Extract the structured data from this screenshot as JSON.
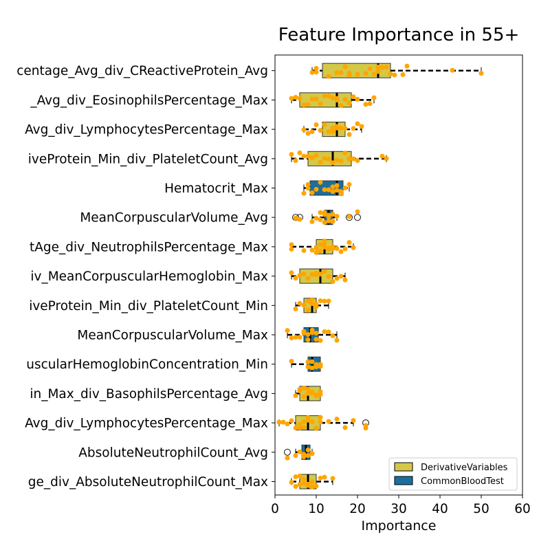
{
  "chart_data": {
    "type": "box",
    "orientation": "horizontal",
    "title": "Feature Importance in 55+",
    "xlabel": "Importance",
    "ylabel": "",
    "xlim": [
      0,
      60
    ],
    "xticks": [
      0,
      10,
      20,
      30,
      40,
      50,
      60
    ],
    "grid": false,
    "legend_position": "lower-right",
    "legend": [
      {
        "name": "DerivativeVariables",
        "color": "#d4c848"
      },
      {
        "name": "CommonBloodTest",
        "color": "#1a6f9e"
      }
    ],
    "point_color": "#ffa500",
    "categories": [
      {
        "label": "centage_Avg_div_CReactiveProtein_Avg",
        "group": "DerivativeVariables",
        "whislo": 9,
        "q1": 11.5,
        "median": 25,
        "q3": 28,
        "whishi": 50,
        "fliers": [],
        "points": [
          9,
          10,
          10,
          13,
          15,
          16,
          17,
          18,
          18,
          20,
          22,
          23,
          24,
          25,
          25,
          26,
          27,
          28,
          29,
          31,
          32,
          43,
          50
        ]
      },
      {
        "label": "_Avg_div_EosinophilsPercentage_Max",
        "group": "DerivativeVariables",
        "whislo": 4,
        "q1": 6,
        "median": 15,
        "q3": 18.5,
        "whishi": 24,
        "fliers": [],
        "points": [
          4,
          5,
          6,
          7,
          8,
          9,
          10,
          11,
          12,
          13,
          14,
          15,
          15,
          16,
          17,
          18,
          19,
          20,
          22,
          23,
          24
        ]
      },
      {
        "label": "Avg_div_LymphocytesPercentage_Max",
        "group": "DerivativeVariables",
        "whislo": 7,
        "q1": 11.5,
        "median": 15,
        "q3": 17,
        "whishi": 21,
        "fliers": [],
        "points": [
          7,
          8,
          9,
          10,
          11,
          12,
          13,
          14,
          14,
          15,
          15,
          16,
          17,
          18,
          19,
          20,
          21
        ]
      },
      {
        "label": "iveProtein_Min_div_PlateletCount_Avg",
        "group": "DerivativeVariables",
        "whislo": 4,
        "q1": 8,
        "median": 14,
        "q3": 18.5,
        "whishi": 27,
        "fliers": [],
        "points": [
          4,
          5,
          6,
          7,
          8,
          9,
          10,
          11,
          12,
          13,
          14,
          15,
          16,
          17,
          18,
          18,
          19,
          20,
          26,
          27
        ]
      },
      {
        "label": "Hematocrit_Max",
        "group": "CommonBloodTest",
        "whislo": 7,
        "q1": 8.5,
        "median": 15,
        "q3": 16.5,
        "whishi": 18,
        "fliers": [],
        "points": [
          7,
          8,
          8,
          9,
          10,
          11,
          12,
          13,
          14,
          14,
          15,
          15,
          16,
          16,
          17,
          18
        ]
      },
      {
        "label": "MeanCorpuscularVolume_Avg",
        "group": "CommonBloodTest",
        "whislo": 9,
        "q1": 12,
        "median": 13,
        "q3": 14,
        "whishi": 15,
        "fliers": [
          5,
          6,
          18,
          20
        ],
        "points": [
          5,
          6,
          9,
          10,
          11,
          11,
          12,
          12,
          12,
          13,
          13,
          13,
          14,
          14,
          14,
          15,
          18,
          20
        ]
      },
      {
        "label": "tAge_div_NeutrophilsPercentage_Max",
        "group": "DerivativeVariables",
        "whislo": 4,
        "q1": 10,
        "median": 12,
        "q3": 14,
        "whishi": 19,
        "fliers": [],
        "points": [
          4,
          4,
          7,
          9,
          10,
          10,
          11,
          11,
          12,
          12,
          12,
          13,
          13,
          14,
          14,
          15,
          16,
          17,
          18,
          19
        ]
      },
      {
        "label": "iv_MeanCorpuscularHemoglobin_Max",
        "group": "DerivativeVariables",
        "whislo": 4,
        "q1": 6,
        "median": 11,
        "q3": 14,
        "whishi": 17,
        "fliers": [],
        "points": [
          4,
          5,
          6,
          7,
          8,
          9,
          10,
          10,
          11,
          12,
          13,
          14,
          15,
          16,
          17
        ]
      },
      {
        "label": "iveProtein_Min_div_PlateletCount_Min",
        "group": "DerivativeVariables",
        "whislo": 5,
        "q1": 7,
        "median": 9,
        "q3": 10,
        "whishi": 13,
        "fliers": [],
        "points": [
          5,
          6,
          7,
          7,
          8,
          8,
          9,
          9,
          10,
          10,
          11,
          12,
          13
        ]
      },
      {
        "label": "MeanCorpuscularVolume_Max",
        "group": "CommonBloodTest",
        "whislo": 3,
        "q1": 7,
        "median": 8.5,
        "q3": 10.5,
        "whishi": 15,
        "fliers": [],
        "points": [
          3,
          4,
          5,
          6,
          7,
          7,
          8,
          8,
          9,
          9,
          10,
          10,
          11,
          12,
          13,
          14,
          15
        ]
      },
      {
        "label": "uscularHemoglobinConcentration_Min",
        "group": "CommonBloodTest",
        "whislo": 4,
        "q1": 8,
        "median": 9,
        "q3": 11,
        "whishi": 11,
        "fliers": [],
        "points": [
          4,
          8,
          8,
          9,
          9,
          10,
          10,
          11,
          11
        ]
      },
      {
        "label": "in_Max_div_BasophilsPercentage_Avg",
        "group": "DerivativeVariables",
        "whislo": 5,
        "q1": 6,
        "median": 8,
        "q3": 11,
        "whishi": 11,
        "fliers": [],
        "points": [
          5,
          6,
          6,
          7,
          7,
          8,
          8,
          9,
          9,
          10,
          10,
          11,
          11
        ]
      },
      {
        "label": "Avg_div_LymphocytesPercentage_Max",
        "group": "DerivativeVariables",
        "whislo": 1,
        "q1": 5,
        "median": 8,
        "q3": 11,
        "whishi": 19,
        "fliers": [
          22
        ],
        "points": [
          1,
          2,
          3,
          4,
          5,
          6,
          6,
          7,
          7,
          8,
          8,
          9,
          9,
          10,
          10,
          11,
          11,
          13,
          15,
          17,
          19,
          22,
          22
        ]
      },
      {
        "label": "AbsoluteNeutrophilCount_Avg",
        "group": "CommonBloodTest",
        "whislo": 5,
        "q1": 6.5,
        "median": 7.5,
        "q3": 8.5,
        "whishi": 9,
        "fliers": [
          3
        ],
        "points": [
          3,
          5,
          6,
          7,
          7,
          8,
          8,
          9,
          9
        ]
      },
      {
        "label": "ge_div_AbsoluteNeutrophilCount_Max",
        "group": "DerivativeVariables",
        "whislo": 4,
        "q1": 6,
        "median": 8,
        "q3": 10,
        "whishi": 14,
        "fliers": [],
        "points": [
          4,
          5,
          5,
          6,
          6,
          7,
          7,
          8,
          8,
          9,
          9,
          10,
          11,
          12,
          14
        ]
      }
    ]
  }
}
